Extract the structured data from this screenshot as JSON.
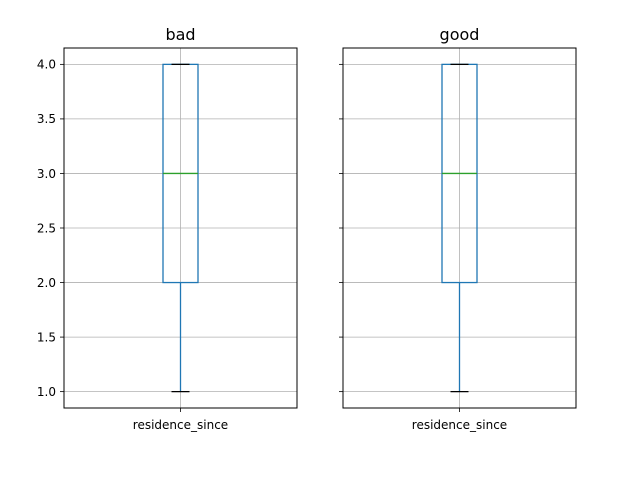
{
  "chart_data": [
    {
      "type": "box",
      "title": "bad",
      "categories": [
        "residence_since"
      ],
      "series": [
        {
          "values": {
            "whisker_low": 1.0,
            "q1": 2.0,
            "median": 3.0,
            "q3": 4.0,
            "whisker_high": 4.0
          }
        }
      ],
      "yticks": [
        "1.0",
        "1.5",
        "2.0",
        "2.5",
        "3.0",
        "3.5",
        "4.0"
      ],
      "ylim": [
        0.85,
        4.15
      ],
      "grid": true,
      "sharey": true,
      "show_ytick_labels": true
    },
    {
      "type": "box",
      "title": "good",
      "categories": [
        "residence_since"
      ],
      "series": [
        {
          "values": {
            "whisker_low": 1.0,
            "q1": 2.0,
            "median": 3.0,
            "q3": 4.0,
            "whisker_high": 4.0
          }
        }
      ],
      "yticks": [
        "1.0",
        "1.5",
        "2.0",
        "2.5",
        "3.0",
        "3.5",
        "4.0"
      ],
      "ylim": [
        0.85,
        4.15
      ],
      "grid": true,
      "sharey": true,
      "show_ytick_labels": false
    }
  ],
  "colors": {
    "box": "#1f77b4",
    "median": "#2ca02c",
    "cap": "#000000",
    "grid": "#b0b0b0",
    "axes": "#000000"
  }
}
